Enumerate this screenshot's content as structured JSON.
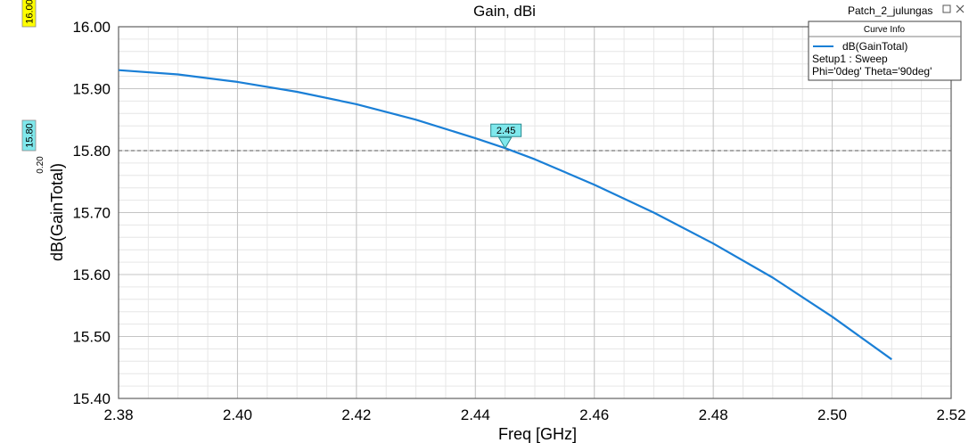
{
  "window": {
    "project_title": "Patch_2_julungas"
  },
  "chart_data": {
    "type": "line",
    "title": "Gain, dBi",
    "xlabel": "Freq [GHz]",
    "ylabel": "dB(GainTotal)",
    "xlim": [
      2.38,
      2.52
    ],
    "ylim": [
      15.4,
      16.0
    ],
    "x_ticks": [
      "2.38",
      "2.40",
      "2.42",
      "2.44",
      "2.46",
      "2.48",
      "2.50",
      "2.52"
    ],
    "y_ticks": [
      "16.00",
      "15.90",
      "15.80",
      "15.70",
      "15.60",
      "15.50",
      "15.40"
    ],
    "grid": true,
    "series": [
      {
        "name": "dB(GainTotal)",
        "color": "#1a7fd6",
        "x": [
          2.38,
          2.39,
          2.4,
          2.41,
          2.42,
          2.43,
          2.44,
          2.445,
          2.45,
          2.46,
          2.47,
          2.48,
          2.49,
          2.5,
          2.51
        ],
        "y": [
          15.93,
          15.923,
          15.911,
          15.895,
          15.875,
          15.85,
          15.82,
          15.804,
          15.786,
          15.745,
          15.7,
          15.65,
          15.595,
          15.532,
          15.463
        ]
      }
    ],
    "legend": {
      "title": "Curve Info",
      "position": "top-right",
      "entries": [
        "dB(GainTotal)"
      ],
      "details": [
        "Setup1 : Sweep",
        "Phi='0deg' Theta='90deg'"
      ]
    },
    "marker": {
      "label": "2.45",
      "x": 2.445,
      "y": 15.804
    },
    "y_markers": [
      {
        "label": "16.00",
        "value": 16.0,
        "color": "#ffff00"
      },
      {
        "label": "15.80",
        "value": 15.8,
        "color": "#7fe8ec",
        "delta": "0.20"
      }
    ]
  }
}
